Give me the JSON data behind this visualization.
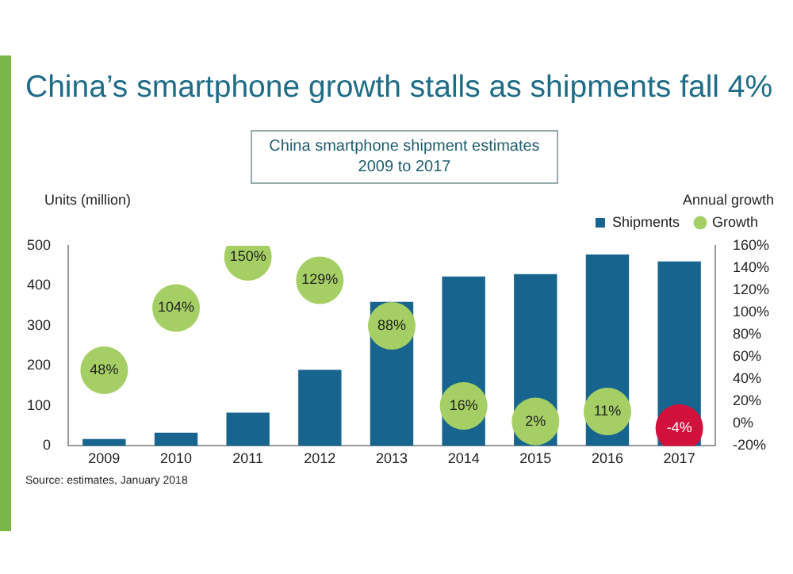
{
  "chart_data": {
    "type": "bar",
    "title": "China’s smartphone growth stalls as shipments fall 4%",
    "subtitle": "China smartphone shipment estimates 2009 to 2017",
    "ylabel": "Units (million)",
    "y2label": "Annual growth",
    "categories": [
      "2009",
      "2010",
      "2011",
      "2012",
      "2013",
      "2014",
      "2015",
      "2016",
      "2017"
    ],
    "series": [
      {
        "name": "Shipments",
        "color": "#17648e",
        "values": [
          17,
          33,
          83,
          190,
          360,
          423,
          429,
          478,
          461
        ]
      },
      {
        "name": "Growth",
        "type": "scatter",
        "axis": "y2",
        "color": "#a5cf64",
        "colors": [
          "#a5cf64",
          "#a5cf64",
          "#a5cf64",
          "#a5cf64",
          "#a5cf64",
          "#a5cf64",
          "#a5cf64",
          "#a5cf64",
          "#d2103c"
        ],
        "values": [
          48,
          104,
          150,
          129,
          88,
          16,
          2,
          11,
          -4
        ],
        "value_labels": [
          "48%",
          "104%",
          "150%",
          "129%",
          "88%",
          "16%",
          "2%",
          "11%",
          "-4%"
        ]
      }
    ],
    "ylim": [
      0,
      500
    ],
    "yticks": [
      0,
      100,
      200,
      300,
      400,
      500
    ],
    "y2lim": [
      -20,
      160
    ],
    "y2ticks": [
      {
        "value": -20,
        "label": "-20%"
      },
      {
        "value": 0,
        "label": "0%"
      },
      {
        "value": 20,
        "label": "20%"
      },
      {
        "value": 40,
        "label": "40%"
      },
      {
        "value": 60,
        "label": "60%"
      },
      {
        "value": 80,
        "label": "80%"
      },
      {
        "value": 100,
        "label": "100%"
      },
      {
        "value": 120,
        "label": "120%"
      },
      {
        "value": 140,
        "label": "140%"
      },
      {
        "value": 160,
        "label": "160%"
      }
    ],
    "grid": false,
    "legend": "top right",
    "marker": "circle",
    "annotations": [
      "Source: estimates, January 2018"
    ]
  }
}
